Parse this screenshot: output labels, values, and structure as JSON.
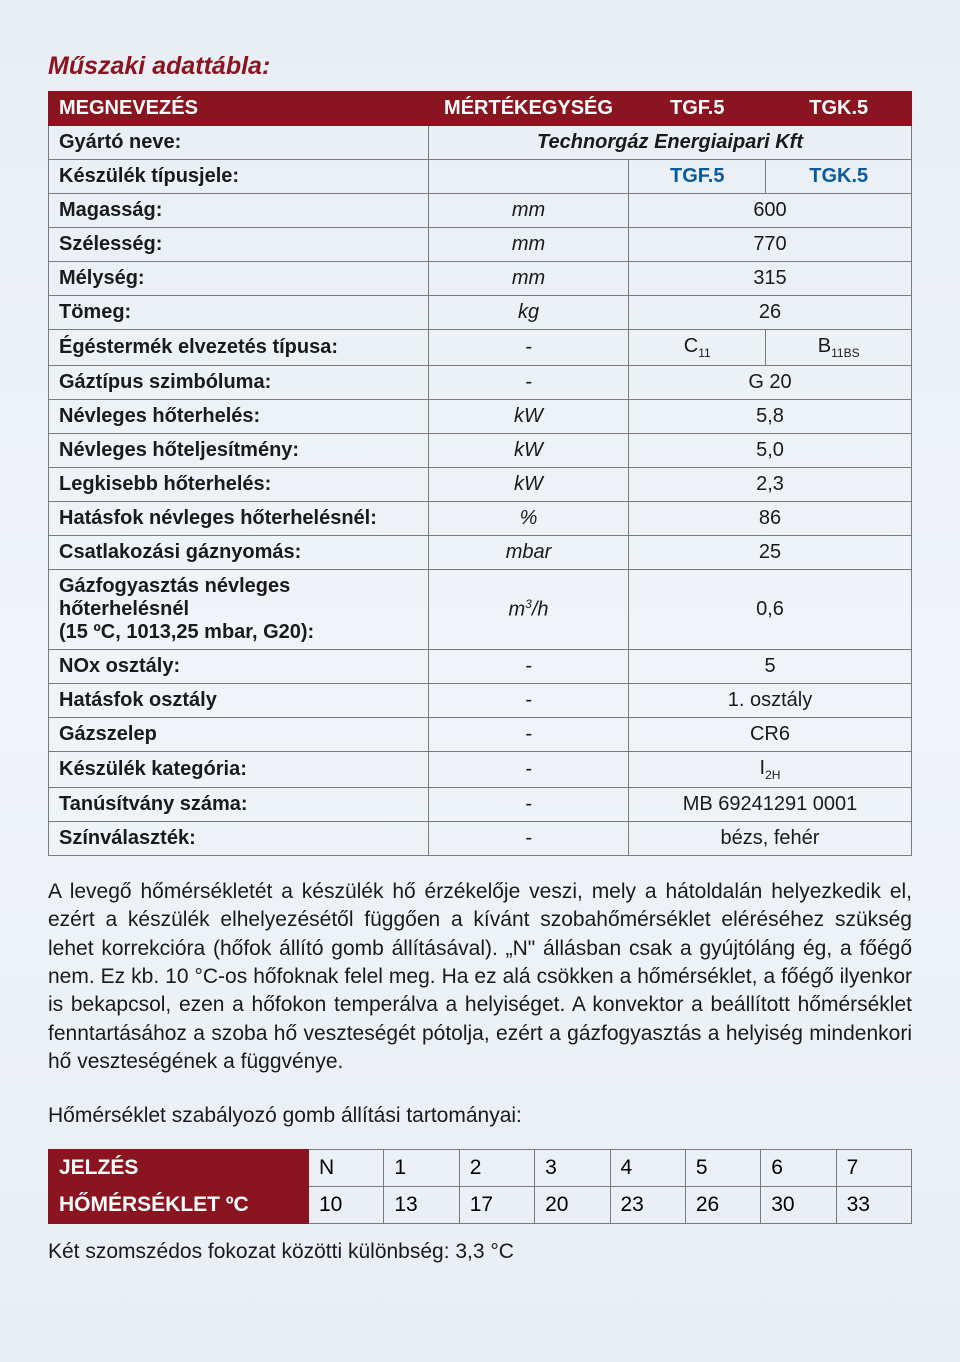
{
  "title": "Műszaki adattábla:",
  "colors": {
    "brand": "#8a1520",
    "accent": "#0a5a9e",
    "text": "#1a1a1a",
    "border": "#7a7a7a",
    "bg_gradient_top": "#e8eef4",
    "bg_gradient_bottom": "#e8eef4"
  },
  "spec_table": {
    "headers": {
      "name": "MEGNEVEZÉS",
      "unit": "MÉRTÉKEGYSÉG",
      "tgf": "TGF.5",
      "tgk": "TGK.5"
    },
    "manufacturer": {
      "label": "Gyártó neve:",
      "value": "Technorgáz Energiaipari Kft"
    },
    "type_code": {
      "label": "Készülék típusjele:",
      "tgf": "TGF.5",
      "tgk": "TGK.5"
    },
    "rows": [
      {
        "label": "Magasság:",
        "unit": "mm",
        "value": "600"
      },
      {
        "label": "Szélesség:",
        "unit": "mm",
        "value": "770"
      },
      {
        "label": "Mélység:",
        "unit": "mm",
        "value": "315"
      },
      {
        "label": "Tömeg:",
        "unit": "kg",
        "value": "26"
      }
    ],
    "flue": {
      "label": "Égéstermék elvezetés típusa:",
      "unit": "-",
      "tgf_html": "C<sub>11</sub>",
      "tgk_html": "B<sub>11BS</sub>",
      "tgf": "C11",
      "tgk": "B11BS"
    },
    "rows2": [
      {
        "label": "Gáztípus szimbóluma:",
        "unit": "-",
        "value": "G 20"
      },
      {
        "label": "Névleges hőterhelés:",
        "unit": "kW",
        "value": "5,8"
      },
      {
        "label": "Névleges hőteljesítmény:",
        "unit": "kW",
        "value": "5,0"
      },
      {
        "label": "Legkisebb hőterhelés:",
        "unit": "kW",
        "value": "2,3"
      },
      {
        "label": "Hatásfok névleges hőterhelésnél:",
        "unit": "%",
        "value": "86"
      },
      {
        "label": "Csatlakozási gáznyomás:",
        "unit": "mbar",
        "value": "25"
      }
    ],
    "gas_consumption": {
      "label_line1": "Gázfogyasztás névleges hőterhelésnél",
      "label_line2": "(15 ºC, 1013,25 mbar, G20):",
      "unit_html": "m³/h",
      "unit": "m3/h",
      "value": "0,6"
    },
    "rows3": [
      {
        "label": "NOx osztály:",
        "unit": "-",
        "value": "5"
      },
      {
        "label": "Hatásfok osztály",
        "unit": "-",
        "value": "1. osztály"
      },
      {
        "label": "Gázszelep",
        "unit": "-",
        "value": "CR6"
      }
    ],
    "category": {
      "label": "Készülék kategória:",
      "unit": "-",
      "value_html": "I<sub>2H</sub>",
      "value": "I2H"
    },
    "rows4": [
      {
        "label": "Tanúsítvány száma:",
        "unit": "-",
        "value": "MB 69241291 0001"
      },
      {
        "label": "Színválaszték:",
        "unit": "-",
        "value": "bézs, fehér"
      }
    ]
  },
  "paragraph": "A levegő hőmérsékletét a készülék hő érzékelője veszi, mely a hátoldalán helyezkedik el, ezért a készülék elhelyezésétől függően a kívánt szobahőmérséklet eléréséhez szükség lehet korrekcióra (hőfok állító gomb állításával). „N\" állásban csak a gyújtóláng ég, a főégő nem. Ez kb. 10 °C-os hőfoknak felel meg. Ha ez alá csökken a hőmérséklet, a főégő ilyenkor is bekapcsol, ezen a hőfokon temperálva a helyiséget. A konvektor a beállított hőmérséklet fenntartásához a szoba hő veszteségét pótolja, ezért a gázfogyasztás a helyiség mindenkori hő veszteségének a függvénye.",
  "temp_heading": "Hőmérséklet szabályozó gomb állítási tartományai:",
  "temp_table": {
    "row1_label": "JELZÉS",
    "row2_label": "HŐMÉRSÉKLET ºC",
    "marks": [
      "N",
      "1",
      "2",
      "3",
      "4",
      "5",
      "6",
      "7"
    ],
    "temps": [
      "10",
      "13",
      "17",
      "20",
      "23",
      "26",
      "30",
      "33"
    ]
  },
  "footnote": "Két szomszédos fokozat közötti különbség: 3,3 °C"
}
